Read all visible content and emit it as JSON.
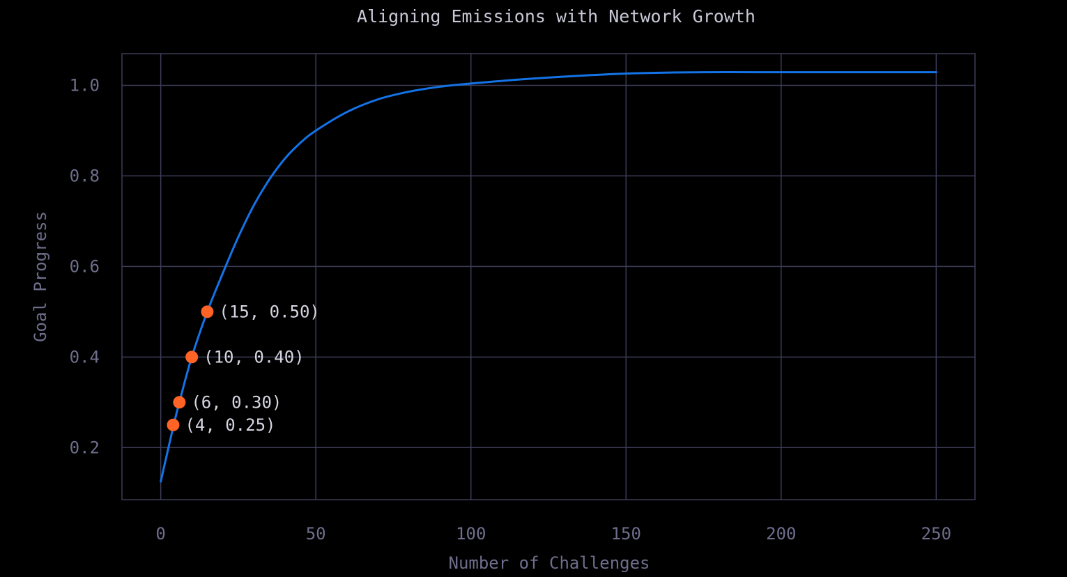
{
  "chart_data": {
    "type": "line",
    "title": "Aligning Emissions with Network Growth",
    "xlabel": "Number of Challenges",
    "ylabel": "Goal Progress",
    "xlim": [
      -12.5,
      262.5
    ],
    "ylim": [
      0.085,
      1.07
    ],
    "x_ticks": [
      "0",
      "50",
      "100",
      "150",
      "200",
      "250"
    ],
    "x_tick_values": [
      0,
      50,
      100,
      150,
      200,
      250
    ],
    "y_ticks": [
      "0.2",
      "0.4",
      "0.6",
      "0.8",
      "1.0"
    ],
    "y_tick_values": [
      0.2,
      0.4,
      0.6,
      0.8,
      1.0
    ],
    "grid": true,
    "series": [
      {
        "color": "#1473e6",
        "x": [
          0,
          4,
          6,
          10,
          15,
          20,
          25,
          30,
          35,
          40,
          45,
          50,
          60,
          70,
          80,
          90,
          100,
          120,
          150,
          175,
          200,
          225,
          250
        ],
        "y": [
          0.125,
          0.245,
          0.3,
          0.4,
          0.5,
          0.585,
          0.665,
          0.735,
          0.792,
          0.838,
          0.873,
          0.9,
          0.941,
          0.969,
          0.986,
          0.997,
          1.004,
          1.015,
          1.026,
          1.029,
          1.029,
          1.029,
          1.029
        ]
      }
    ],
    "highlight_points": [
      {
        "x": 4,
        "y": 0.25,
        "label": "(4, 0.25)"
      },
      {
        "x": 6,
        "y": 0.3,
        "label": "(6, 0.30)"
      },
      {
        "x": 10,
        "y": 0.4,
        "label": "(10, 0.40)"
      },
      {
        "x": 15,
        "y": 0.5,
        "label": "(15, 0.50)"
      }
    ],
    "colors": {
      "background": "#000000",
      "grid": "#3c3c58",
      "axis_text": "#6e6e8c",
      "title_text": "#c8c8d6",
      "line": "#1473e6",
      "point": "#ff6326",
      "point_label": "#d6d6e2"
    }
  }
}
